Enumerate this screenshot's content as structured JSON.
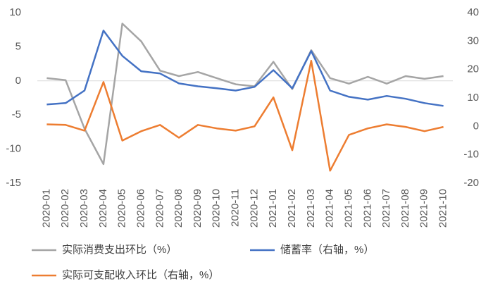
{
  "chart_data": {
    "type": "line",
    "categories": [
      "2020-01",
      "2020-02",
      "2020-03",
      "2020-04",
      "2020-05",
      "2020-06",
      "2020-07",
      "2020-08",
      "2020-09",
      "2020-10",
      "2020-11",
      "2020-12",
      "2021-01",
      "2021-02",
      "2021-03",
      "2021-04",
      "2021-05",
      "2021-06",
      "2021-07",
      "2021-08",
      "2021-09",
      "2021-10"
    ],
    "series": [
      {
        "name": "实际消费支出环比（%）",
        "color": "#a5a5a5",
        "values": [
          0.4,
          0.1,
          -7.0,
          -12.2,
          8.4,
          5.8,
          1.5,
          0.7,
          1.3,
          0.4,
          -0.5,
          -0.8,
          2.8,
          -1.2,
          4.5,
          0.4,
          -0.4,
          0.6,
          -0.4,
          0.7,
          0.3,
          0.7
        ]
      },
      {
        "name": "储蓄率（右轴，%）",
        "color": "#4472c4",
        "axis": "y2",
        "values": [
          7.7,
          8.2,
          12.6,
          33.7,
          24.8,
          19.4,
          18.6,
          15.1,
          14.1,
          13.4,
          12.6,
          13.9,
          19.8,
          13.4,
          26.5,
          12.6,
          10.4,
          9.4,
          10.7,
          9.7,
          8.2,
          7.2
        ]
      },
      {
        "name": "实际可支配收入环比（右轴，%）",
        "color": "#ed7d31",
        "axis": "y2",
        "values": [
          0.7,
          0.5,
          -1.5,
          15.6,
          -5.0,
          -1.7,
          0.5,
          -4.0,
          0.5,
          -0.7,
          -1.5,
          0,
          10.2,
          -8.4,
          23.1,
          -15.6,
          -3.0,
          -0.7,
          0.7,
          -0.2,
          -1.7,
          -0.2
        ]
      }
    ],
    "ylim": [
      -15,
      10
    ],
    "yticks": [
      -15,
      -10,
      -5,
      0,
      5,
      10
    ],
    "y2lim": [
      -20,
      40
    ],
    "y2ticks": [
      -20,
      -10,
      0,
      10,
      20,
      30,
      40
    ],
    "legend": "bottom"
  }
}
